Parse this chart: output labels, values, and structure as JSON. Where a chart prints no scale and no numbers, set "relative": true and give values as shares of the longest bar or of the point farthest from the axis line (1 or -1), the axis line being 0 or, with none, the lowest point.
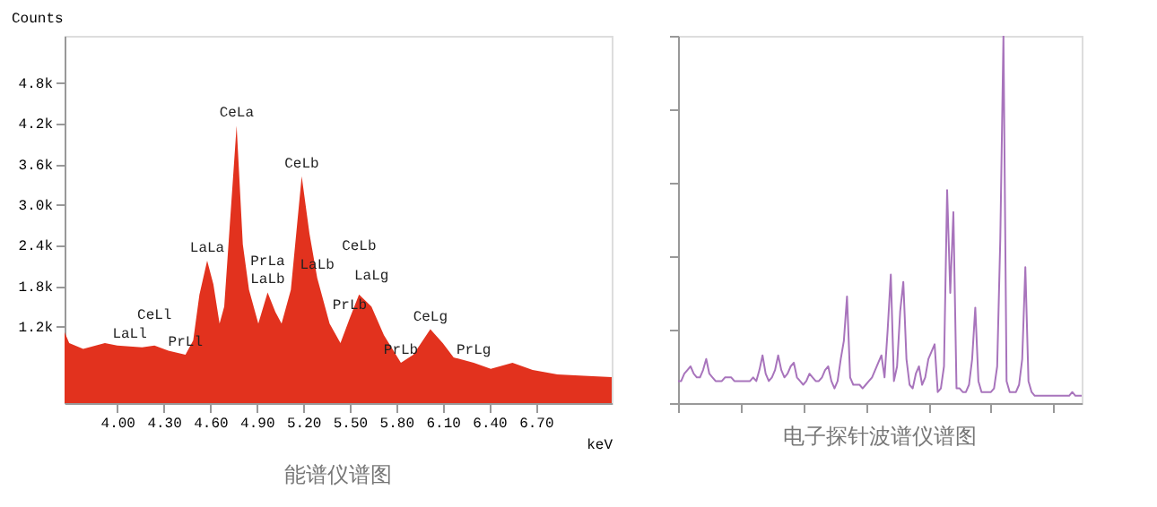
{
  "chart_data": [
    {
      "type": "area",
      "title": "能谱仪谱图",
      "xlabel": "keV",
      "ylabel": "Counts",
      "x": [
        3.66,
        3.69,
        3.78,
        3.92,
        4.0,
        4.16,
        4.24,
        4.33,
        4.44,
        4.49,
        4.53,
        4.58,
        4.62,
        4.66,
        4.69,
        4.77,
        4.81,
        4.85,
        4.91,
        4.97,
        5.02,
        5.06,
        5.12,
        5.19,
        5.24,
        5.29,
        5.37,
        5.44,
        5.5,
        5.56,
        5.64,
        5.72,
        5.83,
        5.91,
        6.02,
        6.1,
        6.17,
        6.3,
        6.41,
        6.55,
        6.68,
        6.84,
        7.01,
        7.19
      ],
      "series": [
        {
          "color": "#e2321e",
          "values": [
            1125,
            960,
            875,
            960,
            925,
            900,
            925,
            850,
            790,
            1000,
            1675,
            2180,
            1830,
            1250,
            1500,
            4175,
            2420,
            1750,
            1250,
            1710,
            1420,
            1250,
            1750,
            3425,
            2580,
            1925,
            1250,
            960,
            1330,
            1680,
            1500,
            1080,
            670,
            790,
            1165,
            960,
            750,
            670,
            580,
            670,
            565,
            500,
            480,
            460
          ]
        }
      ],
      "xlim": [
        3.66,
        7.19
      ],
      "ylim": [
        75,
        5500
      ],
      "xticks": [
        {
          "value": 4.0,
          "label": "4.00"
        },
        {
          "value": 4.3,
          "label": "4.30"
        },
        {
          "value": 4.6,
          "label": "4.60"
        },
        {
          "value": 4.9,
          "label": "4.90"
        },
        {
          "value": 5.2,
          "label": "5.20"
        },
        {
          "value": 5.5,
          "label": "5.50"
        },
        {
          "value": 5.8,
          "label": "5.80"
        },
        {
          "value": 6.1,
          "label": "6.10"
        },
        {
          "value": 6.4,
          "label": "6.40"
        },
        {
          "value": 6.7,
          "label": "6.70"
        }
      ],
      "yticks": [
        {
          "value": 1200,
          "label": "1.2k"
        },
        {
          "value": 1800,
          "label": "1.8k"
        },
        {
          "value": 2400,
          "label": "2.4k"
        },
        {
          "value": 3000,
          "label": "3.0k"
        },
        {
          "value": 3600,
          "label": "3.6k"
        },
        {
          "value": 4200,
          "label": "4.2k"
        },
        {
          "value": 4800,
          "label": "4.8k"
        }
      ],
      "annotations": [
        {
          "text": "LaLl",
          "x": 4.08,
          "y": 910
        },
        {
          "text": "CeLl",
          "x": 4.24,
          "y": 925
        },
        {
          "text": "PrLl",
          "x": 4.44,
          "y": 790
        },
        {
          "text": "LaLa",
          "x": 4.58,
          "y": 2180
        },
        {
          "text": "CeLa",
          "x": 4.77,
          "y": 4175
        },
        {
          "text": "LaLb",
          "x": 4.97,
          "y": 1710
        },
        {
          "text": "PrLa",
          "x": 4.97,
          "y": 1710
        },
        {
          "text": "CeLb",
          "x": 5.19,
          "y": 3425
        },
        {
          "text": "LaLb",
          "x": 5.29,
          "y": 1925
        },
        {
          "text": "PrLb",
          "x": 5.5,
          "y": 1330
        },
        {
          "text": "CeLb",
          "x": 5.56,
          "y": 1680
        },
        {
          "text": "LaLg",
          "x": 5.64,
          "y": 1500
        },
        {
          "text": "PrLb",
          "x": 5.83,
          "y": 670
        },
        {
          "text": "CeLg",
          "x": 6.02,
          "y": 1165
        },
        {
          "text": "PrLg",
          "x": 6.3,
          "y": 670
        }
      ]
    },
    {
      "type": "line",
      "title": "电子探针波谱仪谱图",
      "relative": true,
      "categories": [
        null,
        null,
        null,
        null,
        null,
        null,
        null,
        null,
        null,
        null,
        null,
        null,
        null,
        null,
        null,
        null,
        null,
        null,
        null,
        null,
        null,
        null,
        null,
        null,
        null,
        null,
        null,
        null,
        null,
        null,
        null,
        null,
        null,
        null,
        null,
        null,
        null,
        null,
        null,
        null,
        null,
        null,
        null,
        null,
        null,
        null,
        null,
        null,
        null,
        null,
        null,
        null,
        null,
        null,
        null,
        null,
        null,
        null,
        null,
        null,
        null,
        null,
        null,
        null,
        null,
        null,
        null,
        null,
        null,
        null,
        null,
        null,
        null,
        null,
        null,
        null,
        null,
        null,
        null,
        null,
        null,
        null,
        null,
        null,
        null,
        null,
        null,
        null,
        null,
        null,
        null,
        null,
        null,
        null,
        null,
        null,
        null,
        null,
        null,
        null,
        null,
        null,
        null,
        null,
        null,
        null,
        null,
        null,
        null,
        null,
        null,
        null,
        null,
        null,
        null,
        null,
        null,
        null,
        null,
        null,
        null,
        null,
        null,
        null,
        null,
        null,
        null,
        null,
        null,
        null
      ],
      "series": [
        {
          "color": "#a874bc",
          "values": [
            0.06,
            0.06,
            0.08,
            0.09,
            0.1,
            0.08,
            0.07,
            0.07,
            0.09,
            0.12,
            0.08,
            0.07,
            0.06,
            0.06,
            0.06,
            0.07,
            0.07,
            0.07,
            0.06,
            0.06,
            0.06,
            0.06,
            0.06,
            0.06,
            0.07,
            0.06,
            0.09,
            0.13,
            0.08,
            0.06,
            0.07,
            0.09,
            0.13,
            0.09,
            0.07,
            0.08,
            0.1,
            0.11,
            0.07,
            0.06,
            0.05,
            0.06,
            0.08,
            0.07,
            0.06,
            0.06,
            0.07,
            0.09,
            0.1,
            0.06,
            0.04,
            0.06,
            0.12,
            0.17,
            0.29,
            0.07,
            0.05,
            0.05,
            0.05,
            0.04,
            0.05,
            0.06,
            0.07,
            0.09,
            0.11,
            0.13,
            0.07,
            0.2,
            0.35,
            0.06,
            0.1,
            0.25,
            0.33,
            0.12,
            0.05,
            0.04,
            0.08,
            0.1,
            0.05,
            0.07,
            0.12,
            0.14,
            0.16,
            0.03,
            0.04,
            0.1,
            0.58,
            0.3,
            0.52,
            0.04,
            0.04,
            0.03,
            0.03,
            0.05,
            0.12,
            0.26,
            0.06,
            0.03,
            0.03,
            0.03,
            0.03,
            0.04,
            0.1,
            0.45,
            1.0,
            0.06,
            0.03,
            0.03,
            0.03,
            0.05,
            0.12,
            0.37,
            0.06,
            0.03,
            0.02,
            0.02,
            0.02,
            0.02,
            0.02,
            0.02,
            0.02,
            0.02,
            0.02,
            0.02,
            0.02,
            0.02,
            0.03,
            0.02,
            0.02,
            0.02
          ]
        }
      ]
    }
  ]
}
